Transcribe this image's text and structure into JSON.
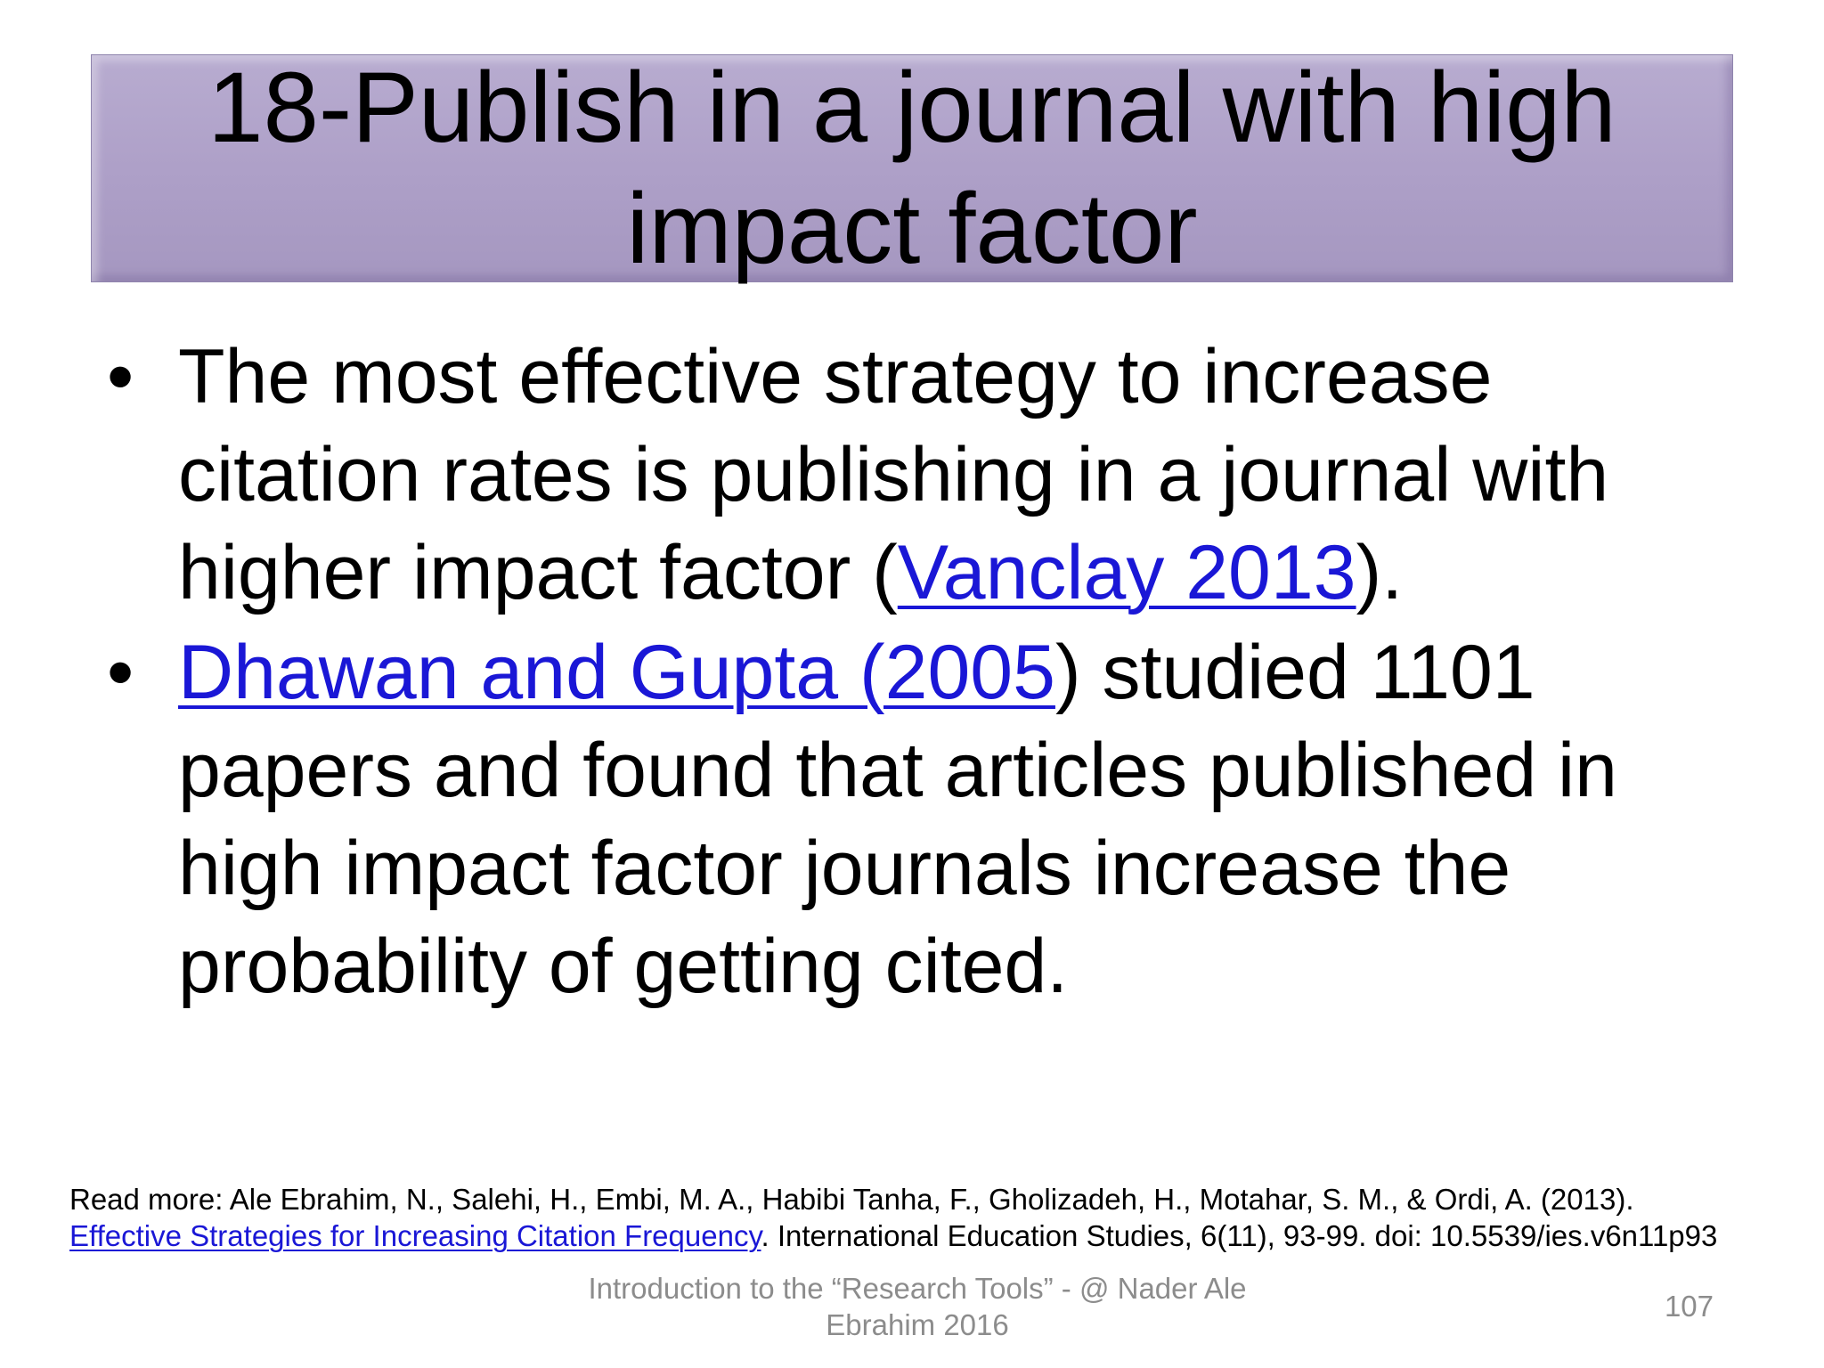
{
  "slide": {
    "title": "18-Publish in a journal with high impact factor",
    "bullets": [
      {
        "pre": "The most effective strategy to increase citation rates is publishing in a journal with higher impact factor (",
        "link": "Vanclay 2013",
        "post": ")."
      },
      {
        "pre": "",
        "link": "Dhawan and Gupta (2005",
        "post": ") studied 1101 papers and found that articles published in high impact factor journals increase the probability of getting cited."
      }
    ],
    "bullet_glyph": "•"
  },
  "reference": {
    "prefix": "Read more: Ale Ebrahim, N., Salehi, H., Embi, M. A., Habibi Tanha, F., Gholizadeh, H., Motahar, S. M., & Ordi, A. (2013).",
    "link": "Effective Strategies for Increasing Citation Frequency",
    "suffix": ". International Education Studies, 6(11), 93-99. doi: 10.5539/ies.v6n11p93"
  },
  "footer": {
    "text": "Introduction to the “Research Tools” - @ Nader Ale Ebrahim 2016",
    "page_number": "107"
  },
  "colors": {
    "title_bar": "#aea0c8",
    "link": "#1a17d6",
    "footer_text": "#8c8c8c"
  }
}
